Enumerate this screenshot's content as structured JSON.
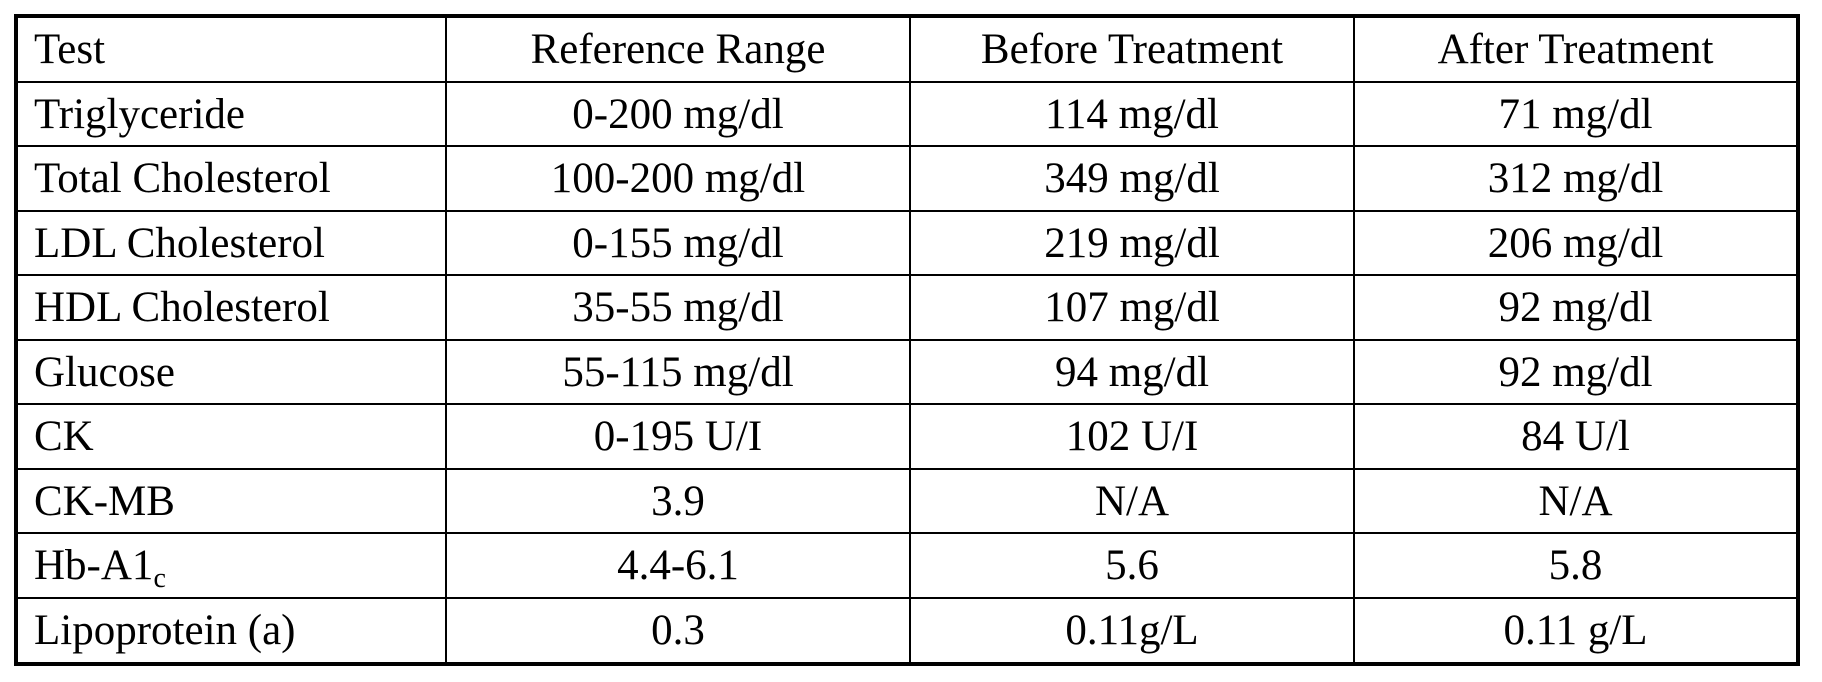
{
  "table": {
    "headers": [
      "Test",
      "Reference Range",
      "Before Treatment",
      "After Treatment"
    ],
    "rows": [
      {
        "test": "Triglyceride",
        "test_sub": "",
        "reference": "0-200 mg/dl",
        "before": "114 mg/dl",
        "after": "71 mg/dl"
      },
      {
        "test": "Total Cholesterol",
        "test_sub": "",
        "reference": "100-200 mg/dl",
        "before": "349 mg/dl",
        "after": "312 mg/dl"
      },
      {
        "test": "LDL Cholesterol",
        "test_sub": "",
        "reference": "0-155 mg/dl",
        "before": "219 mg/dl",
        "after": "206 mg/dl"
      },
      {
        "test": "HDL Cholesterol",
        "test_sub": "",
        "reference": "35-55 mg/dl",
        "before": "107 mg/dl",
        "after": "92 mg/dl"
      },
      {
        "test": "Glucose",
        "test_sub": "",
        "reference": "55-115 mg/dl",
        "before": "94 mg/dl",
        "after": "92 mg/dl"
      },
      {
        "test": "CK",
        "test_sub": "",
        "reference": "0-195 U/I",
        "before": "102 U/I",
        "after": "84 U/l"
      },
      {
        "test": "CK-MB",
        "test_sub": "",
        "reference": "3.9",
        "before": "N/A",
        "after": "N/A"
      },
      {
        "test": "Hb-A1",
        "test_sub": "c",
        "reference": "4.4-6.1",
        "before": "5.6",
        "after": "5.8"
      },
      {
        "test": "Lipoprotein (a)",
        "test_sub": "",
        "reference": "0.3",
        "before": "0.11g/L",
        "after": "0.11 g/L"
      }
    ]
  }
}
